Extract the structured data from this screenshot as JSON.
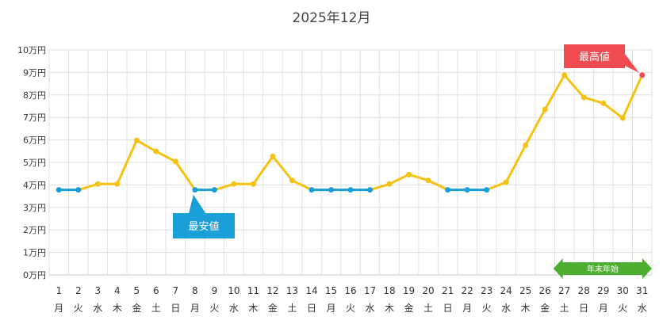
{
  "chart_data": {
    "type": "line",
    "title": "2025年12月",
    "xlabel": "",
    "ylabel": "",
    "ylim": [
      0,
      100000
    ],
    "yticks": [
      {
        "value": 0,
        "label": "0万円"
      },
      {
        "value": 10000,
        "label": "1万円"
      },
      {
        "value": 20000,
        "label": "2万円"
      },
      {
        "value": 30000,
        "label": "3万円"
      },
      {
        "value": 40000,
        "label": "4万円"
      },
      {
        "value": 50000,
        "label": "5万円"
      },
      {
        "value": 60000,
        "label": "6万円"
      },
      {
        "value": 70000,
        "label": "7万円"
      },
      {
        "value": 80000,
        "label": "8万円"
      },
      {
        "value": 90000,
        "label": "9万円"
      },
      {
        "value": 100000,
        "label": "10万円"
      }
    ],
    "categories": [
      "1",
      "2",
      "3",
      "4",
      "5",
      "6",
      "7",
      "8",
      "9",
      "10",
      "11",
      "12",
      "13",
      "14",
      "15",
      "16",
      "17",
      "18",
      "19",
      "20",
      "21",
      "22",
      "23",
      "24",
      "25",
      "26",
      "27",
      "28",
      "29",
      "30",
      "31"
    ],
    "weekdays": [
      "月",
      "火",
      "水",
      "木",
      "金",
      "土",
      "日",
      "月",
      "火",
      "水",
      "木",
      "金",
      "土",
      "日",
      "月",
      "火",
      "水",
      "木",
      "金",
      "土",
      "日",
      "月",
      "火",
      "水",
      "木",
      "金",
      "土",
      "日",
      "月",
      "火",
      "水"
    ],
    "values": [
      37800,
      37800,
      40400,
      40400,
      59800,
      54900,
      50400,
      37800,
      37800,
      40400,
      40400,
      52700,
      42000,
      37800,
      37800,
      37800,
      37800,
      40400,
      44600,
      42000,
      37800,
      37800,
      37800,
      41200,
      57600,
      73500,
      88800,
      78900,
      76300,
      69700,
      88800
    ],
    "line_color": "#f5c214",
    "lowest": {
      "label": "最安値",
      "color": "#1a9fd8",
      "segments": [
        [
          1,
          2
        ],
        [
          8,
          9
        ],
        [
          14,
          17
        ],
        [
          21,
          23
        ]
      ],
      "callout_day": 8
    },
    "highest": {
      "label": "最高値",
      "color": "#f04b50",
      "day": 31
    },
    "highlight_range": {
      "label": "年末年始",
      "color": "#4caf2f",
      "from_day": 27,
      "to_day": 31
    },
    "grid": true,
    "legend": "none"
  }
}
